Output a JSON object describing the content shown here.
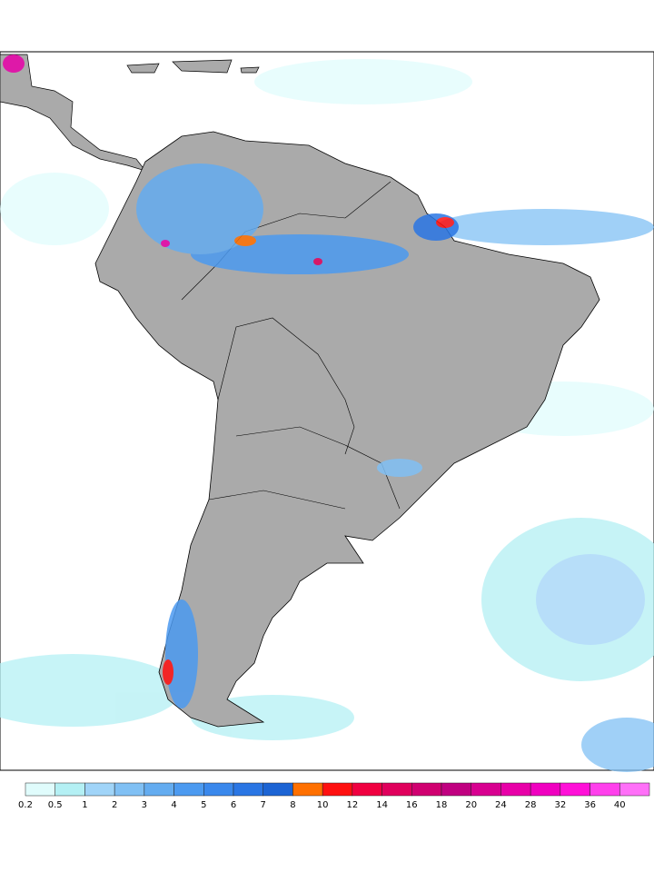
{
  "map": {
    "colorbar": {
      "levels": [
        0.2,
        0.5,
        1,
        2,
        3,
        4,
        5,
        6,
        7,
        8,
        10,
        12,
        14,
        16,
        18,
        20,
        24,
        28,
        32,
        36,
        40
      ],
      "colors": [
        "#e0fcfc",
        "#b4f0f4",
        "#a0d4f8",
        "#80c0f4",
        "#64acf0",
        "#4c9af0",
        "#3a88ec",
        "#2a76e4",
        "#1c64d4",
        "#ff7000",
        "#ff1010",
        "#f00040",
        "#e0005c",
        "#d00070",
        "#c00080",
        "#d80090",
        "#e800a8",
        "#f000c0",
        "#ff10d8",
        "#ff40ec",
        "#ff70f8"
      ]
    }
  }
}
